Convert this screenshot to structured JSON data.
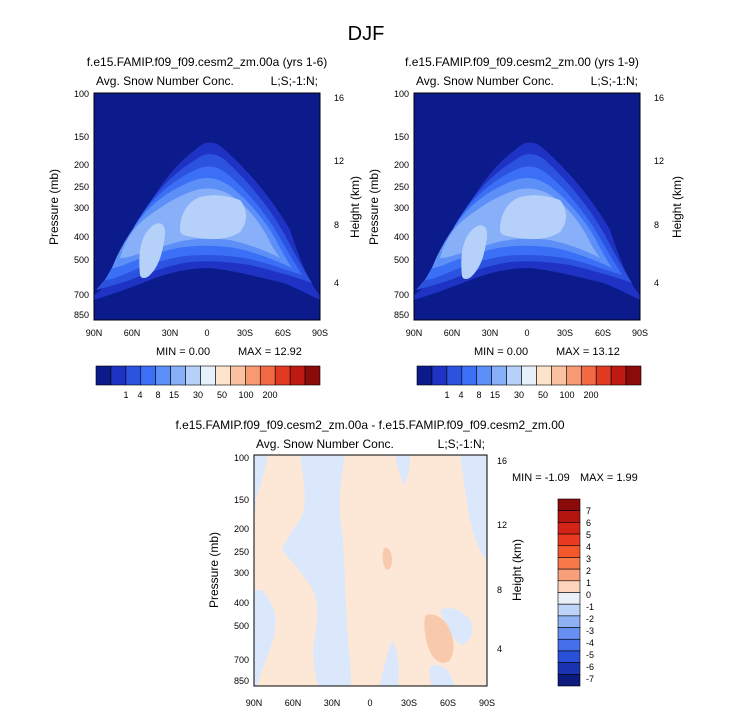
{
  "figure": {
    "title": "DJF",
    "left_title": "f.e15.FAMIP.f09_f09.cesm2_zm.00a (yrs 1-6)",
    "right_title": "f.e15.FAMIP.f09_f09.cesm2_zm.00 (yrs 1-9)",
    "diff_title": "f.e15.FAMIP.f09_f09.cesm2_zm.00a - f.e15.FAMIP.f09_f09.cesm2_zm.00"
  },
  "chart_data": [
    {
      "type": "heatmap",
      "title": "f.e15.FAMIP.f09_f09.cesm2_zm.00a (yrs 1-6)",
      "subtitle_left": "Avg. Snow Number Conc.",
      "subtitle_right": "L;S;-1:N;",
      "ylabel": "Pressure (mb)",
      "ylabel_right": "Height (km)",
      "x_ticks": [
        "90N",
        "60N",
        "30N",
        "0",
        "30S",
        "60S",
        "90S"
      ],
      "y_ticks": [
        "100",
        "150",
        "200",
        "250",
        "300",
        "400",
        "500",
        "700",
        "850"
      ],
      "y_ticks_right": [
        "16",
        "12",
        "8",
        "4"
      ],
      "min_label": "MIN =  0.00",
      "max_label": "MAX = 12.92",
      "colorbar_labels": [
        "1",
        "4",
        "8",
        "15",
        "30",
        "50",
        "100",
        "200"
      ],
      "colorbar_colors": [
        "#0c1b8c",
        "#1e33c4",
        "#2c52e0",
        "#3b6ff5",
        "#5c8ff7",
        "#88b0f8",
        "#b6d1f9",
        "#e6f0fb",
        "#fde2cc",
        "#fbc2a2",
        "#f79a74",
        "#f26a44",
        "#e23a22",
        "#bf1a12",
        "#8b0a0a"
      ]
    },
    {
      "type": "heatmap",
      "title": "f.e15.FAMIP.f09_f09.cesm2_zm.00 (yrs 1-9)",
      "subtitle_left": "Avg. Snow Number Conc.",
      "subtitle_right": "L;S;-1:N;",
      "ylabel": "Pressure (mb)",
      "ylabel_right": "Height (km)",
      "x_ticks": [
        "90N",
        "60N",
        "30N",
        "0",
        "30S",
        "60S",
        "90S"
      ],
      "y_ticks": [
        "100",
        "150",
        "200",
        "250",
        "300",
        "400",
        "500",
        "700",
        "850"
      ],
      "y_ticks_right": [
        "16",
        "12",
        "8",
        "4"
      ],
      "min_label": "MIN =  0.00",
      "max_label": "MAX = 13.12",
      "colorbar_labels": [
        "1",
        "4",
        "8",
        "15",
        "30",
        "50",
        "100",
        "200"
      ]
    },
    {
      "type": "heatmap",
      "title": "f.e15.FAMIP.f09_f09.cesm2_zm.00a - f.e15.FAMIP.f09_f09.cesm2_zm.00",
      "subtitle_left": "Avg. Snow Number Conc.",
      "subtitle_right": "L;S;-1:N;",
      "ylabel": "Pressure (mb)",
      "ylabel_right": "Height (km)",
      "x_ticks": [
        "90N",
        "60N",
        "30N",
        "0",
        "30S",
        "60S",
        "90S"
      ],
      "y_ticks": [
        "100",
        "150",
        "200",
        "250",
        "300",
        "400",
        "500",
        "700",
        "850"
      ],
      "y_ticks_right": [
        "16",
        "12",
        "8",
        "4"
      ],
      "min_label": "MIN = -1.09",
      "max_label": "MAX =  1.99",
      "colorbar_labels": [
        "7",
        "6",
        "5",
        "4",
        "3",
        "2",
        "1",
        "0",
        "-1",
        "-2",
        "-3",
        "-4",
        "-5",
        "-6",
        "-7"
      ],
      "colorbar_colors": [
        "#8b0a0a",
        "#b3150f",
        "#d42418",
        "#ea3b22",
        "#f3582d",
        "#f7794a",
        "#f9a07a",
        "#fcd4bd",
        "#eaf0f8",
        "#bdd3f7",
        "#8fb2f5",
        "#6890f2",
        "#4470ec",
        "#2a4fd8",
        "#1a33b0",
        "#0c1b7c"
      ]
    }
  ]
}
